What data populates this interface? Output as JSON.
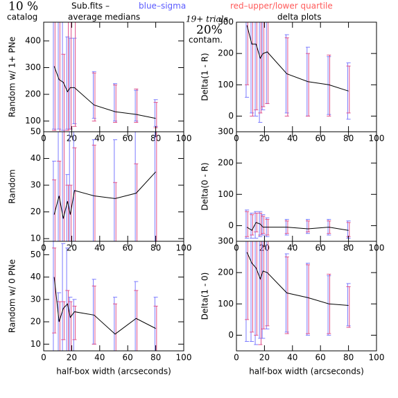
{
  "header": {
    "left_big": "10 %",
    "left_sub": "catalog",
    "file": "Sub.fits  –",
    "medians": "average medians",
    "blue_key": "blue–sigma",
    "red_key": "red–upper/lower quartile",
    "trials": "19+ trials",
    "contam_big": "20%",
    "contam_sub": "contam.",
    "right_sub": "delta plots"
  },
  "chart_data": [
    {
      "type": "line",
      "y_label": "Random w/ 1+ PNe",
      "x": [
        7.5,
        11,
        14,
        17,
        19,
        22,
        36,
        51,
        66,
        80
      ],
      "values": [
        305,
        255,
        245,
        210,
        225,
        225,
        160,
        135,
        125,
        110
      ],
      "sigma_low": [
        70,
        70,
        65,
        70,
        70,
        90,
        110,
        100,
        100,
        80
      ],
      "sigma_high": [
        470,
        470,
        470,
        415,
        410,
        410,
        285,
        240,
        215,
        180
      ],
      "q_low": [
        65,
        60,
        60,
        65,
        70,
        80,
        100,
        95,
        95,
        75
      ],
      "q_high": [
        470,
        470,
        350,
        470,
        470,
        470,
        280,
        235,
        220,
        170
      ],
      "xlim": [
        0,
        100
      ],
      "xticks": [
        0,
        20,
        40,
        60,
        80,
        100
      ],
      "ylim": [
        60,
        470
      ],
      "yticks": [
        100,
        200,
        300,
        400
      ],
      "line_color": "#000000",
      "sigma_color": "#7a7aff",
      "quartile_color": "#e0508a"
    },
    {
      "type": "line",
      "y_label": "Delta(1 - R)",
      "x": [
        7.5,
        11,
        14,
        17,
        19,
        22,
        36,
        51,
        66,
        80
      ],
      "values": [
        290,
        230,
        230,
        185,
        200,
        205,
        135,
        110,
        100,
        80
      ],
      "sigma_low": [
        60,
        10,
        0,
        -20,
        20,
        40,
        10,
        0,
        5,
        -10
      ],
      "sigma_high": [
        300,
        300,
        300,
        300,
        300,
        300,
        260,
        220,
        190,
        170
      ],
      "q_low": [
        100,
        0,
        20,
        10,
        30,
        40,
        0,
        0,
        0,
        10
      ],
      "q_high": [
        300,
        300,
        300,
        300,
        300,
        300,
        250,
        200,
        195,
        160
      ],
      "xlim": [
        0,
        100
      ],
      "xticks": [
        0,
        20,
        40,
        60,
        80,
        100
      ],
      "ylim": [
        -50,
        300
      ],
      "yticks": [
        0,
        100,
        200,
        300
      ],
      "line_color": "#000000",
      "sigma_color": "#7a7aff",
      "quartile_color": "#e0508a"
    },
    {
      "type": "line",
      "y_label": "Random",
      "x": [
        7.5,
        11,
        14,
        17,
        19,
        22,
        36,
        51,
        66,
        80
      ],
      "values": [
        19,
        26,
        17.5,
        24,
        19,
        28,
        26,
        25,
        27,
        35
      ],
      "sigma_low": [
        9,
        9,
        9,
        9,
        9,
        9,
        9,
        9,
        9,
        9
      ],
      "sigma_high": [
        39,
        50,
        50,
        34,
        50,
        50,
        47,
        47,
        50,
        50
      ],
      "q_low": [
        9,
        9,
        9,
        9,
        9,
        9,
        9,
        9,
        9,
        9
      ],
      "q_high": [
        32,
        39,
        50,
        30,
        30,
        44,
        45,
        31,
        38,
        50
      ],
      "xlim": [
        0,
        100
      ],
      "xticks": [
        0,
        20,
        40,
        60,
        80,
        100
      ],
      "ylim": [
        9,
        50
      ],
      "yticks": [
        10,
        20,
        30,
        40,
        50
      ],
      "line_color": "#000000",
      "sigma_color": "#7a7aff",
      "quartile_color": "#e0508a"
    },
    {
      "type": "line",
      "y_label": "Delta(0 - R)",
      "x": [
        7.5,
        11,
        14,
        17,
        19,
        22,
        36,
        51,
        66,
        80
      ],
      "values": [
        -5,
        -15,
        10,
        5,
        -5,
        -5,
        -5,
        -10,
        -5,
        -15
      ],
      "sigma_low": [
        -40,
        -40,
        -40,
        -35,
        -30,
        -35,
        -30,
        -25,
        -30,
        -40
      ],
      "sigma_high": [
        50,
        40,
        45,
        45,
        35,
        25,
        20,
        20,
        20,
        15
      ],
      "q_low": [
        -35,
        -30,
        -20,
        -30,
        -25,
        -30,
        -25,
        -20,
        -25,
        -35
      ],
      "q_high": [
        45,
        35,
        40,
        40,
        30,
        20,
        15,
        15,
        15,
        10
      ],
      "xlim": [
        0,
        100
      ],
      "xticks": [
        0,
        20,
        40,
        60,
        80,
        100
      ],
      "ylim": [
        -50,
        300
      ],
      "yticks": [
        0,
        100,
        200,
        300
      ],
      "line_color": "#000000",
      "sigma_color": "#7a7aff",
      "quartile_color": "#e0508a"
    },
    {
      "type": "line",
      "y_label": "Random w/ 0 PNe",
      "x_label": "half-box width (arcseconds)",
      "x": [
        7.5,
        11,
        14,
        17,
        19,
        22,
        36,
        51,
        66,
        80
      ],
      "values": [
        40,
        20,
        26,
        28,
        22,
        24.5,
        23,
        14.5,
        21.5,
        17
      ],
      "sigma_low": [
        7,
        7,
        7,
        7,
        7,
        7,
        10,
        7,
        7,
        7
      ],
      "sigma_high": [
        56,
        33,
        55,
        53,
        31,
        30,
        39,
        31,
        38,
        31
      ],
      "q_low": [
        15,
        7,
        12,
        7,
        7,
        12,
        10,
        7,
        7,
        7
      ],
      "q_high": [
        53,
        29,
        29,
        34,
        29,
        27,
        36,
        28,
        34,
        27
      ],
      "xlim": [
        0,
        100
      ],
      "xticks": [
        0,
        20,
        40,
        60,
        80,
        100
      ],
      "ylim": [
        7,
        56
      ],
      "yticks": [
        10,
        20,
        30,
        40,
        50
      ],
      "line_color": "#000000",
      "sigma_color": "#7a7aff",
      "quartile_color": "#e0508a"
    },
    {
      "type": "line",
      "y_label": "Delta(1 - 0)",
      "x_label": "half-box width (arcseconds)",
      "x": [
        7.5,
        11,
        14,
        17,
        19,
        22,
        36,
        51,
        66,
        80
      ],
      "values": [
        265,
        230,
        215,
        180,
        205,
        200,
        135,
        120,
        100,
        95
      ],
      "sigma_low": [
        -20,
        -20,
        -30,
        -10,
        -10,
        20,
        10,
        0,
        0,
        30
      ],
      "sigma_high": [
        300,
        300,
        300,
        300,
        300,
        300,
        260,
        230,
        190,
        165
      ],
      "q_low": [
        50,
        10,
        0,
        -30,
        20,
        30,
        5,
        5,
        5,
        25
      ],
      "q_high": [
        300,
        300,
        300,
        300,
        300,
        300,
        250,
        225,
        195,
        155
      ],
      "xlim": [
        0,
        100
      ],
      "xticks": [
        0,
        20,
        40,
        60,
        80,
        100
      ],
      "ylim": [
        -50,
        300
      ],
      "yticks": [
        0,
        100,
        200,
        300
      ],
      "line_color": "#000000",
      "sigma_color": "#7a7aff",
      "quartile_color": "#e0508a"
    }
  ]
}
